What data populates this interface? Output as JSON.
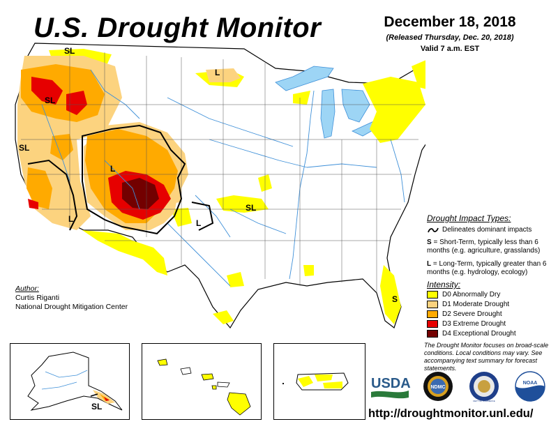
{
  "header": {
    "title": "U.S. Drought Monitor",
    "date": "December 18, 2018",
    "released": "(Released Thursday, Dec. 20, 2018)",
    "valid": "Valid 7 a.m. EST"
  },
  "map_labels": {
    "sl_northwest": "SL",
    "sl_oregon": "SL",
    "sl_california": "SL",
    "l_north_dakota": "L",
    "l_colorado": "L",
    "l_southern_california": "L",
    "l_new_mexico": "L",
    "sl_oklahoma": "SL",
    "s_florida": "S",
    "sl_alaska": "SL"
  },
  "legend": {
    "impact_title": "Drought Impact Types:",
    "impact_line": "Delineates dominant impacts",
    "s_key": "S",
    "s_desc": " = Short-Term, typically less than 6 months (e.g. agriculture, grasslands)",
    "l_key": "L",
    "l_desc": " = Long-Term, typically greater than 6 months (e.g. hydrology, ecology)",
    "intensity_title": "Intensity:",
    "intensity": [
      {
        "label": "D0 Abnormally Dry",
        "color": "#FFFF00"
      },
      {
        "label": "D1 Moderate Drought",
        "color": "#FCD37F"
      },
      {
        "label": "D2 Severe Drought",
        "color": "#FFAA00"
      },
      {
        "label": "D3 Extreme Drought",
        "color": "#E60000"
      },
      {
        "label": "D4 Exceptional Drought",
        "color": "#730000"
      }
    ]
  },
  "author": {
    "title": "Author:",
    "name": "Curtis Riganti",
    "org": "National Drought Mitigation Center"
  },
  "note": "The Drought Monitor focuses on broad-scale conditions. Local conditions may vary. See accompanying text summary for forecast statements.",
  "logos": {
    "usda": "USDA",
    "ndmc": "NDMC",
    "commerce": "DEPT OF COMMERCE",
    "noaa": "NOAA"
  },
  "url": "http://droughtmonitor.unl.edu/",
  "colors": {
    "water": "#9DD5F5",
    "river": "#3D8FD8",
    "border": "#000000"
  }
}
